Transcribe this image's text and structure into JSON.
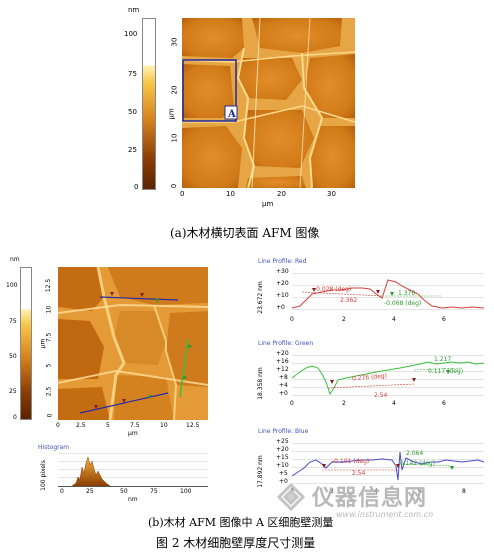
{
  "colors": {
    "afm_dark": "#8a3d05",
    "afm_mid": "#d9861f",
    "afm_light": "#ffe8a0",
    "frame_blue": "#1f2a9c",
    "profile_red": "#d2403a",
    "profile_green": "#3bbf3b",
    "profile_blue": "#4a4ad0",
    "profile_title": "#4050b8"
  },
  "figure_a": {
    "colorbar_unit": "nm",
    "colorbar_ticks": [
      "100",
      "75",
      "50",
      "25",
      "0"
    ],
    "y_ticks": [
      "30",
      "20",
      "10",
      "0"
    ],
    "x_ticks": [
      "0",
      "10",
      "20",
      "30"
    ],
    "y_unit": "μm",
    "x_unit": "μm",
    "region_label": "A",
    "caption": "(a)木材横切表面 AFM 图像"
  },
  "figure_b": {
    "colorbar_unit": "nm",
    "colorbar_ticks": [
      "100",
      "75",
      "50",
      "25",
      "0"
    ],
    "y_ticks": [
      "12.5",
      "10",
      "7.5",
      "5",
      "2.5",
      "0"
    ],
    "x_ticks": [
      "0",
      "2.5",
      "5",
      "7.5",
      "10",
      "12.5"
    ],
    "y_unit": "μm",
    "x_unit": "μm",
    "histogram": {
      "title": "Histogram",
      "ylabel": "100 pixels",
      "x_ticks": [
        "0",
        "25",
        "50",
        "75",
        "100"
      ],
      "x_unit": "nm"
    },
    "profiles": [
      {
        "title": "Line Profile: Red",
        "ylabel": "23.672 nm",
        "y_ticks": [
          "+30",
          "+20",
          "+10",
          "+0"
        ],
        "x_ticks": [
          "0",
          "2",
          "4",
          "6"
        ],
        "annotations": [
          "-0.028 (deg)",
          "2.362",
          "1.376",
          "-0.068 (deg)"
        ]
      },
      {
        "title": "Line Profile: Green",
        "ylabel": "18.358 nm",
        "y_ticks": [
          "+20",
          "+16",
          "+12",
          "+8",
          "+4",
          "+0"
        ],
        "x_ticks": [
          "0",
          "2",
          "4",
          "6"
        ],
        "annotations": [
          "0.276 (deg)",
          "2.54",
          "1.217",
          "0.117 (deg)"
        ]
      },
      {
        "title": "Line Profile: Blue",
        "ylabel": "17.892 nm",
        "y_ticks": [
          "+25",
          "+20",
          "+15",
          "+10",
          "+5",
          "+0"
        ],
        "x_ticks": [
          "0",
          "2",
          "4",
          "6",
          "8"
        ],
        "annotations": [
          "-0.101 (deg)",
          "2.54",
          "2.064",
          "0.142 (deg)"
        ]
      }
    ],
    "caption": "(b)木材 AFM 图像中 A 区细胞壁测量"
  },
  "figure_caption": "图 2 木材细胞壁厚度尺寸测量",
  "watermark": {
    "brand": "仪器信息网",
    "url": "www.instrument.com.cn"
  }
}
